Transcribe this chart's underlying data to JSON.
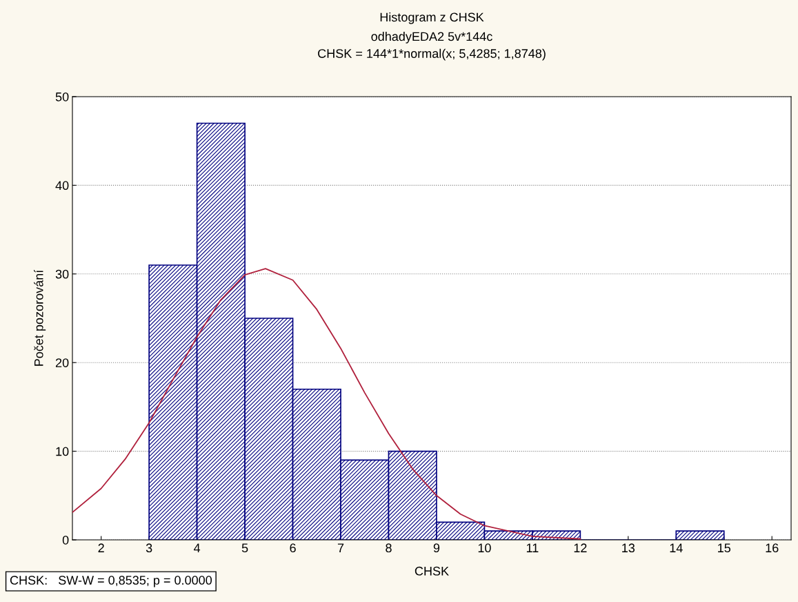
{
  "chart_data": {
    "type": "histogram",
    "title": "Histogram z CHSK",
    "subtitle": "odhadyEDA2 5v*144c\nCHSK = 144*1*normal(x; 5,4285; 1,8748)",
    "xlabel": "CHSK",
    "ylabel": "Počet pozorování",
    "series": [
      {
        "color": "#000080",
        "bins": [
          3,
          4,
          5,
          6,
          7,
          8,
          9,
          10,
          11,
          12,
          13,
          14,
          15
        ],
        "values": [
          31,
          47,
          25,
          17,
          9,
          10,
          2,
          1,
          1,
          0,
          0,
          1
        ]
      },
      {
        "type": "line",
        "color": "#b0203c",
        "x": [
          1.4,
          2,
          2.5,
          3,
          3.5,
          4,
          4.5,
          5,
          5.43,
          6,
          6.5,
          7,
          7.5,
          8,
          8.5,
          9,
          9.5,
          10,
          11,
          12
        ],
        "values": [
          3.1,
          5.8,
          9.1,
          13.2,
          18.1,
          22.9,
          27.1,
          29.9,
          30.6,
          29.3,
          26.0,
          21.6,
          16.6,
          12.0,
          8.0,
          5.0,
          2.9,
          1.6,
          0.4,
          0.1
        ]
      }
    ],
    "xlim": [
      1.4,
      16.4
    ],
    "xticks": [
      2,
      3,
      4,
      5,
      6,
      7,
      8,
      9,
      10,
      11,
      12,
      13,
      14,
      15,
      16
    ],
    "ylim": [
      0,
      50
    ],
    "yticks": [
      0,
      10,
      20,
      30,
      40,
      50
    ],
    "grid": "y",
    "annotations": [
      "CHSK:   SW-W = 0,8535; p = 0.0000"
    ]
  }
}
